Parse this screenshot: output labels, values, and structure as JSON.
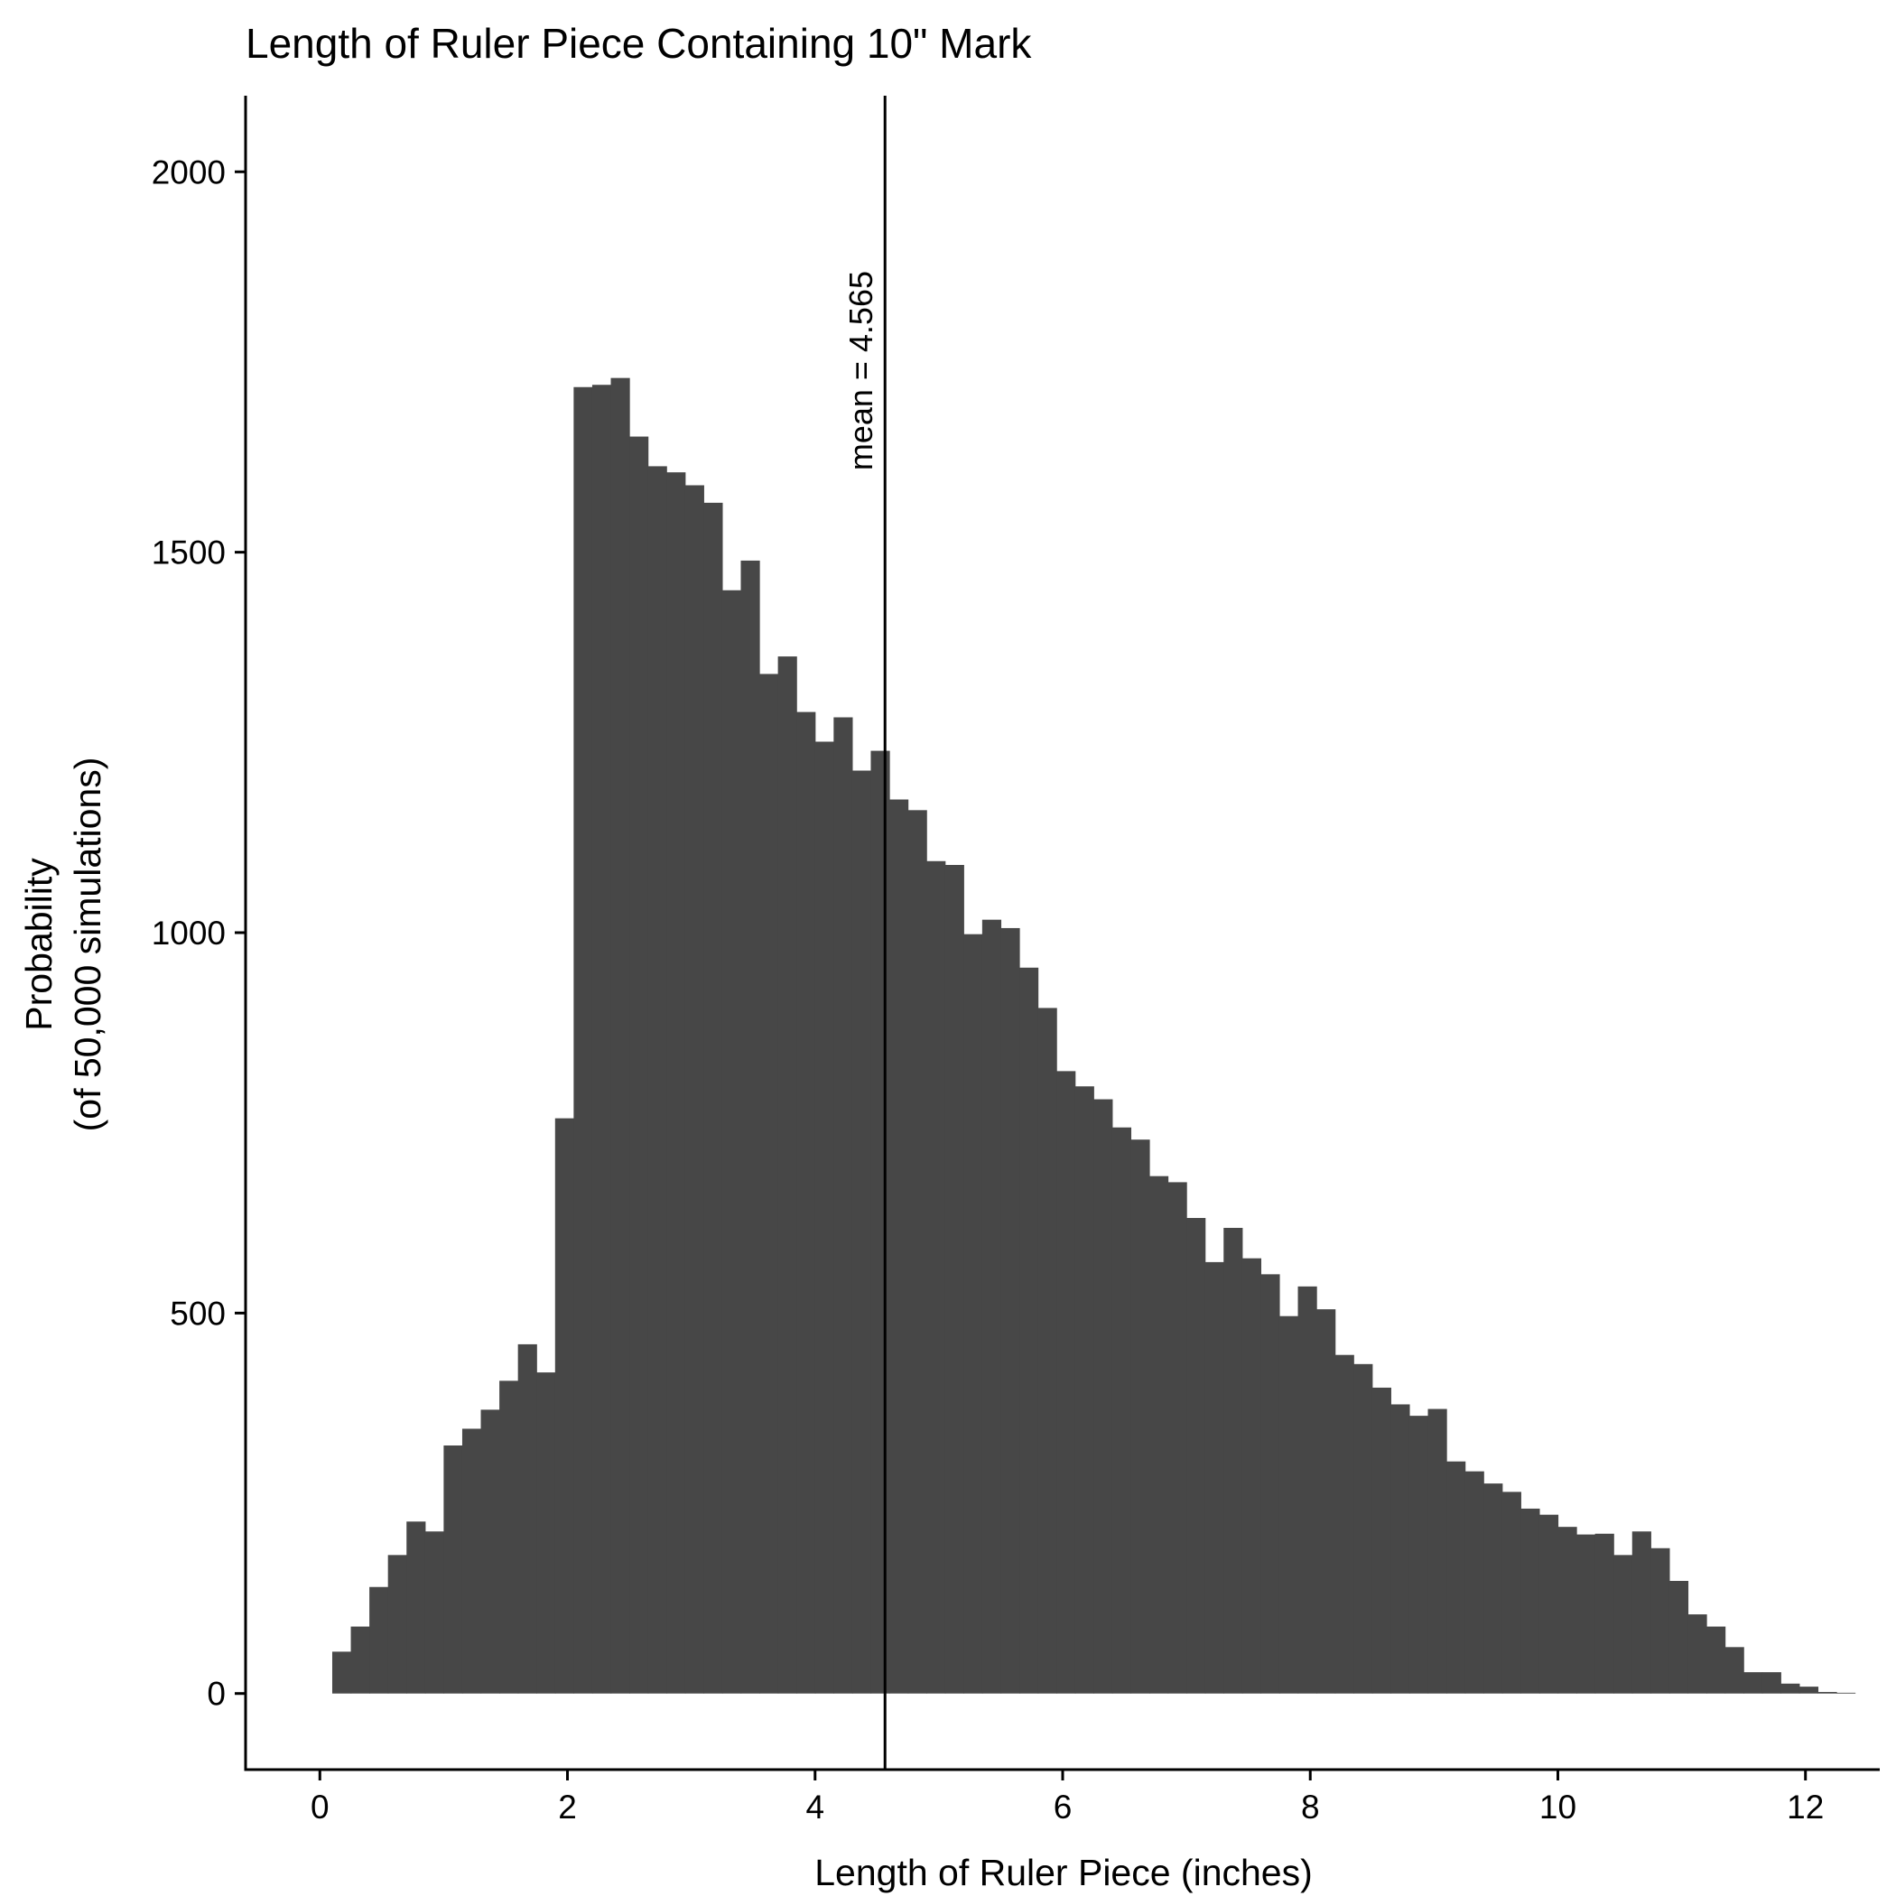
{
  "chart_data": {
    "type": "bar",
    "title": "Length of Ruler Piece Containing 10\" Mark",
    "xlabel": "Length of Ruler Piece (inches)",
    "ylabel_line1": "Probability",
    "ylabel_line2": "(of 50,000 simulations)",
    "xlim": [
      -0.6,
      12.6
    ],
    "ylim": [
      -100,
      2100
    ],
    "x_ticks": [
      0,
      2,
      4,
      6,
      8,
      10,
      12
    ],
    "y_ticks": [
      0,
      500,
      1000,
      1500,
      2000
    ],
    "bin_start": 0.1,
    "bin_width": 0.15,
    "values": [
      55,
      88,
      140,
      182,
      226,
      213,
      326,
      348,
      373,
      411,
      459,
      422,
      756,
      1717,
      1720,
      1729,
      1652,
      1613,
      1605,
      1588,
      1565,
      1450,
      1489,
      1340,
      1363,
      1290,
      1251,
      1283,
      1213,
      1239,
      1175,
      1161,
      1094,
      1089,
      998,
      1017,
      1006,
      954,
      901,
      818,
      798,
      781,
      744,
      728,
      680,
      672,
      625,
      567,
      612,
      572,
      551,
      496,
      535,
      505,
      445,
      433,
      402,
      380,
      365,
      374,
      305,
      292,
      276,
      265,
      243,
      235,
      219,
      209,
      210,
      182,
      213,
      191,
      148,
      104,
      88,
      61,
      28,
      28,
      13,
      9,
      2,
      1
    ],
    "bar_color": "#474747",
    "mean_line": {
      "x": 4.565,
      "label": "mean = 4.565"
    },
    "grid": false,
    "legend": "none"
  }
}
